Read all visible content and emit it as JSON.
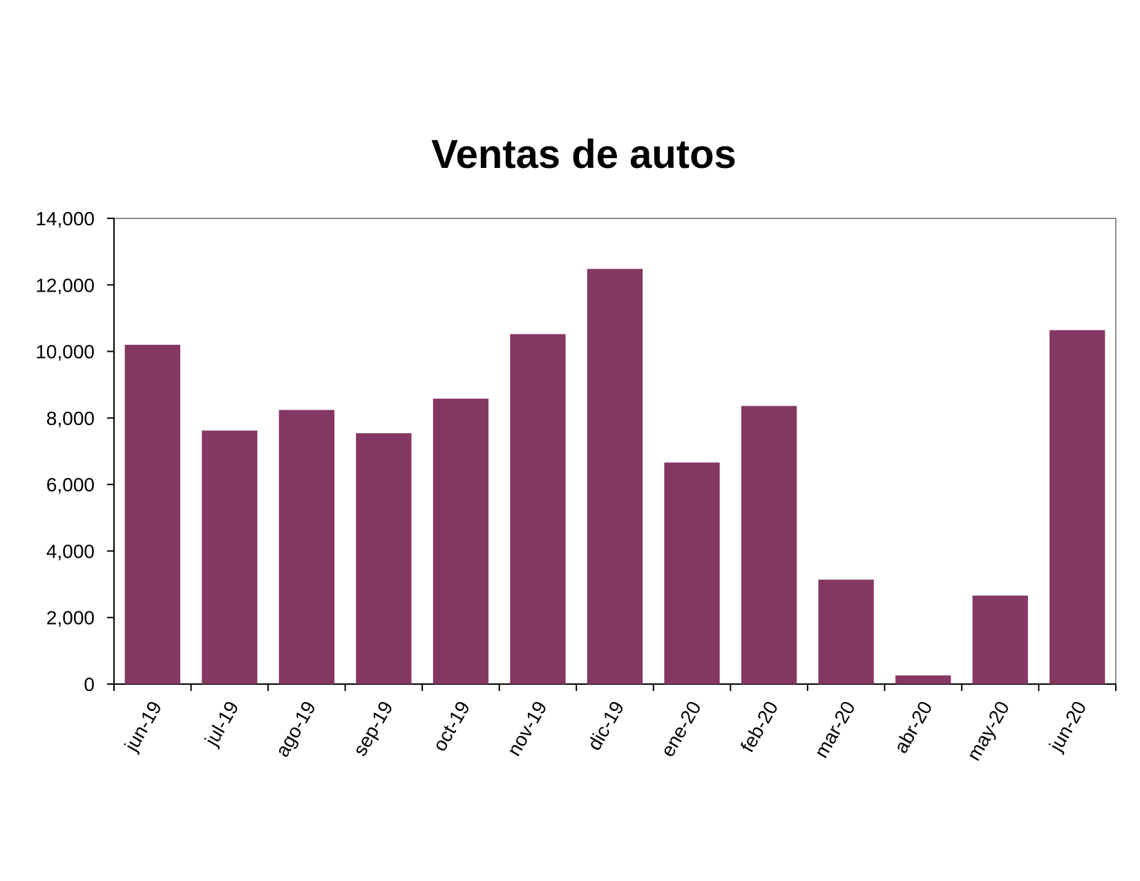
{
  "chart_data": {
    "type": "bar",
    "title": "Ventas de autos",
    "xlabel": "",
    "ylabel": "",
    "categories": [
      "jun-19",
      "jul-19",
      "ago-19",
      "sep-19",
      "oct-19",
      "nov-19",
      "dic-19",
      "ene-20",
      "feb-20",
      "mar-20",
      "abr-20",
      "may-20",
      "jun-20"
    ],
    "values": [
      10200,
      7620,
      8240,
      7540,
      8580,
      10520,
      12480,
      6660,
      8360,
      3140,
      260,
      2660,
      10640
    ],
    "ylim": [
      0,
      14000
    ],
    "yticks": [
      "0",
      "2,000",
      "4,000",
      "6,000",
      "8,000",
      "10,000",
      "12,000",
      "14,000"
    ],
    "ytick_values": [
      0,
      2000,
      4000,
      6000,
      8000,
      10000,
      12000,
      14000
    ],
    "grid": false,
    "legend": "none",
    "bar_color": "#853764"
  }
}
